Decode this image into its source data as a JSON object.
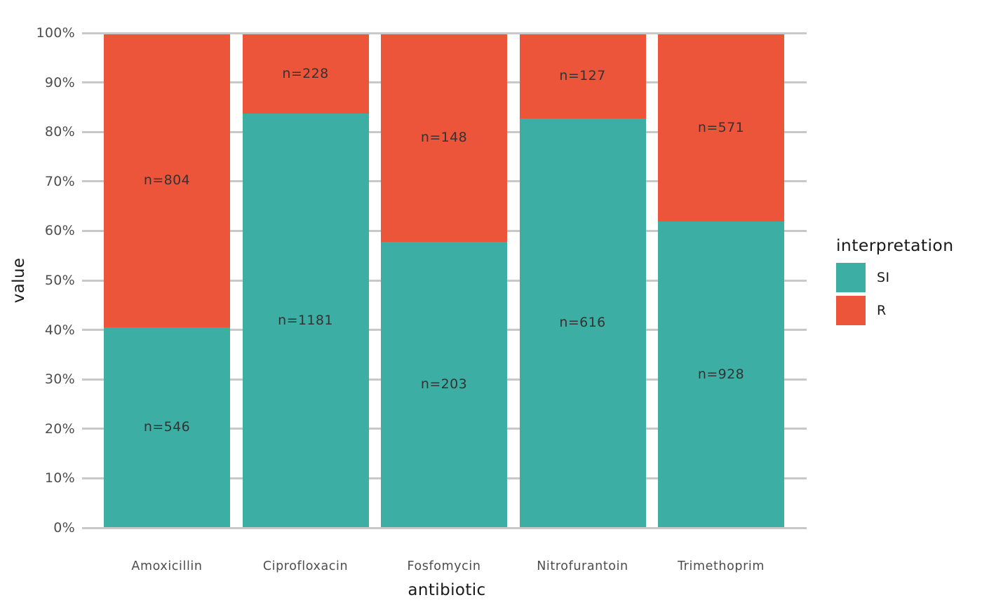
{
  "chart_data": {
    "type": "bar",
    "variant": "stacked-100-percent",
    "title": "",
    "xlabel": "antibiotic",
    "ylabel": "value",
    "categories": [
      "Amoxicillin",
      "Ciprofloxacin",
      "Fosfomycin",
      "Nitrofurantoin",
      "Trimethoprim"
    ],
    "series": [
      {
        "name": "SI",
        "color": "#3CAEA3",
        "counts": [
          546,
          1181,
          203,
          616,
          928
        ],
        "labels": [
          "n=546",
          "n=1181",
          "n=203",
          "n=616",
          "n=928"
        ]
      },
      {
        "name": "R",
        "color": "#ED553B",
        "counts": [
          804,
          228,
          148,
          127,
          571
        ],
        "labels": [
          "n=804",
          "n=228",
          "n=148",
          "n=127",
          "n=571"
        ]
      }
    ],
    "stack_order_bottom_to_top": [
      "SI",
      "R"
    ],
    "y_ticks": [
      "0%",
      "10%",
      "20%",
      "30%",
      "40%",
      "50%",
      "60%",
      "70%",
      "80%",
      "90%",
      "100%"
    ],
    "ylim": [
      0,
      100
    ],
    "grid": true,
    "grid_color": "#C8C8C8",
    "legend": {
      "title": "interpretation",
      "position": "right",
      "entries": [
        {
          "label": "SI",
          "color": "#3CAEA3"
        },
        {
          "label": "R",
          "color": "#ED553B"
        }
      ]
    }
  }
}
